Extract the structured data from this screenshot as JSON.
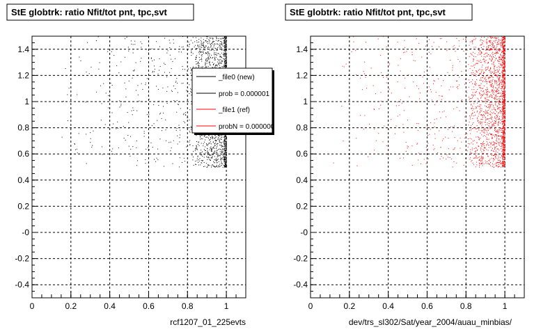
{
  "colors": {
    "background": "#ffffff",
    "new_series": "#000000",
    "ref_series": "#ff0000",
    "grid": "#000000"
  },
  "footer": {
    "text": ""
  },
  "chart_data": [
    {
      "type": "scatter",
      "title": "StE globtrk: ratio Nfit/tot pnt, tpc,svt",
      "xlabel": "rcf1207_01_225evts",
      "ylabel": "",
      "xlim": [
        0,
        1.1
      ],
      "ylim": [
        -0.5,
        1.5
      ],
      "xticks": [
        "0",
        "0.2",
        "0.4",
        "0.6",
        "0.8",
        "1"
      ],
      "xtick_values": [
        0,
        0.2,
        0.4,
        0.6,
        0.8,
        1
      ],
      "yticks": [
        "-0.4",
        "-0.2",
        "-0",
        "0.2",
        "0.4",
        "0.6",
        "0.8",
        "1",
        "1.2",
        "1.4"
      ],
      "ytick_values": [
        -0.4,
        -0.2,
        0,
        0.2,
        0.4,
        0.6,
        0.8,
        1,
        1.2,
        1.4
      ],
      "grid": true,
      "series": [
        {
          "name": "_file0 (new)",
          "color": "#000000",
          "description_points": "dense band near x=1 (0.98-1.0), y from 0.5 to 1.5; scattered points for x in 0.1-0.95, y 0.5-1.5"
        }
      ],
      "legend": {
        "position": "top-right",
        "entries": [
          {
            "label": "_file0 (new)",
            "color": "#000000"
          },
          {
            "label": "prob = 0.000001",
            "color": "#000000"
          },
          {
            "label": "_file1 (ref)",
            "color": "#ff0000"
          },
          {
            "label": "probN = 0.000000",
            "color": "#ff0000"
          }
        ]
      }
    },
    {
      "type": "scatter",
      "title": "StE globtrk: ratio Nfit/tot pnt, tpc,svt",
      "xlabel": "dev/trs_sl302/Sat/year_2004/auau_minbias/",
      "ylabel": "",
      "xlim": [
        0,
        1.1
      ],
      "ylim": [
        -0.5,
        1.5
      ],
      "xticks": [
        "0",
        "0.2",
        "0.4",
        "0.6",
        "0.8",
        "1"
      ],
      "xtick_values": [
        0,
        0.2,
        0.4,
        0.6,
        0.8,
        1
      ],
      "yticks": [
        "-0.4",
        "-0.2",
        "-0",
        "0.2",
        "0.4",
        "0.6",
        "0.8",
        "1",
        "1.2",
        "1.4"
      ],
      "ytick_values": [
        -0.4,
        -0.2,
        0,
        0.2,
        0.4,
        0.6,
        0.8,
        1,
        1.2,
        1.4
      ],
      "grid": true,
      "series": [
        {
          "name": "_file1 (ref)",
          "color": "#ff0000"
        }
      ]
    }
  ]
}
